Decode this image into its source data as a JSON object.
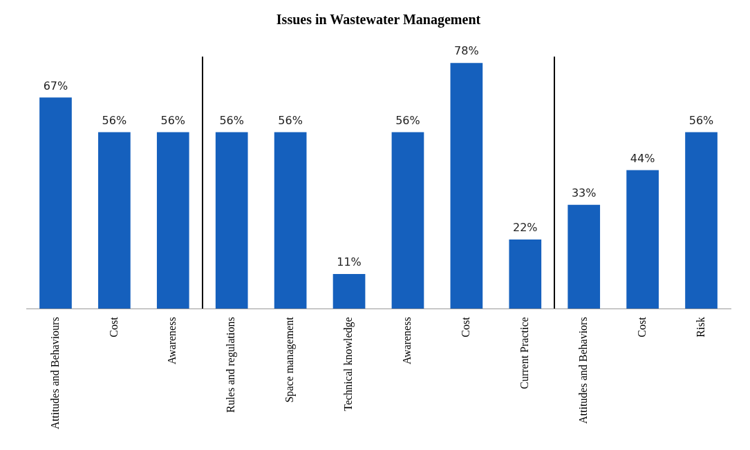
{
  "chart_data": {
    "type": "bar",
    "title": "Issues in Wastewater Management",
    "categories": [
      "Attitudes and Behaviours",
      "Cost",
      "Awareness",
      "Rules and regulations",
      "Space management",
      "Technical knowledge",
      "Awareness",
      "Cost",
      "Current Practice",
      "Attitudes and Behaviors",
      "Cost",
      "Risk"
    ],
    "values": [
      67,
      56,
      56,
      56,
      56,
      11,
      56,
      78,
      22,
      33,
      44,
      56
    ],
    "value_labels": [
      "67%",
      "56%",
      "56%",
      "56%",
      "56%",
      "11%",
      "56%",
      "78%",
      "22%",
      "33%",
      "44%",
      "56%"
    ],
    "color": "#1560bd",
    "grid": false,
    "legend": false
  }
}
